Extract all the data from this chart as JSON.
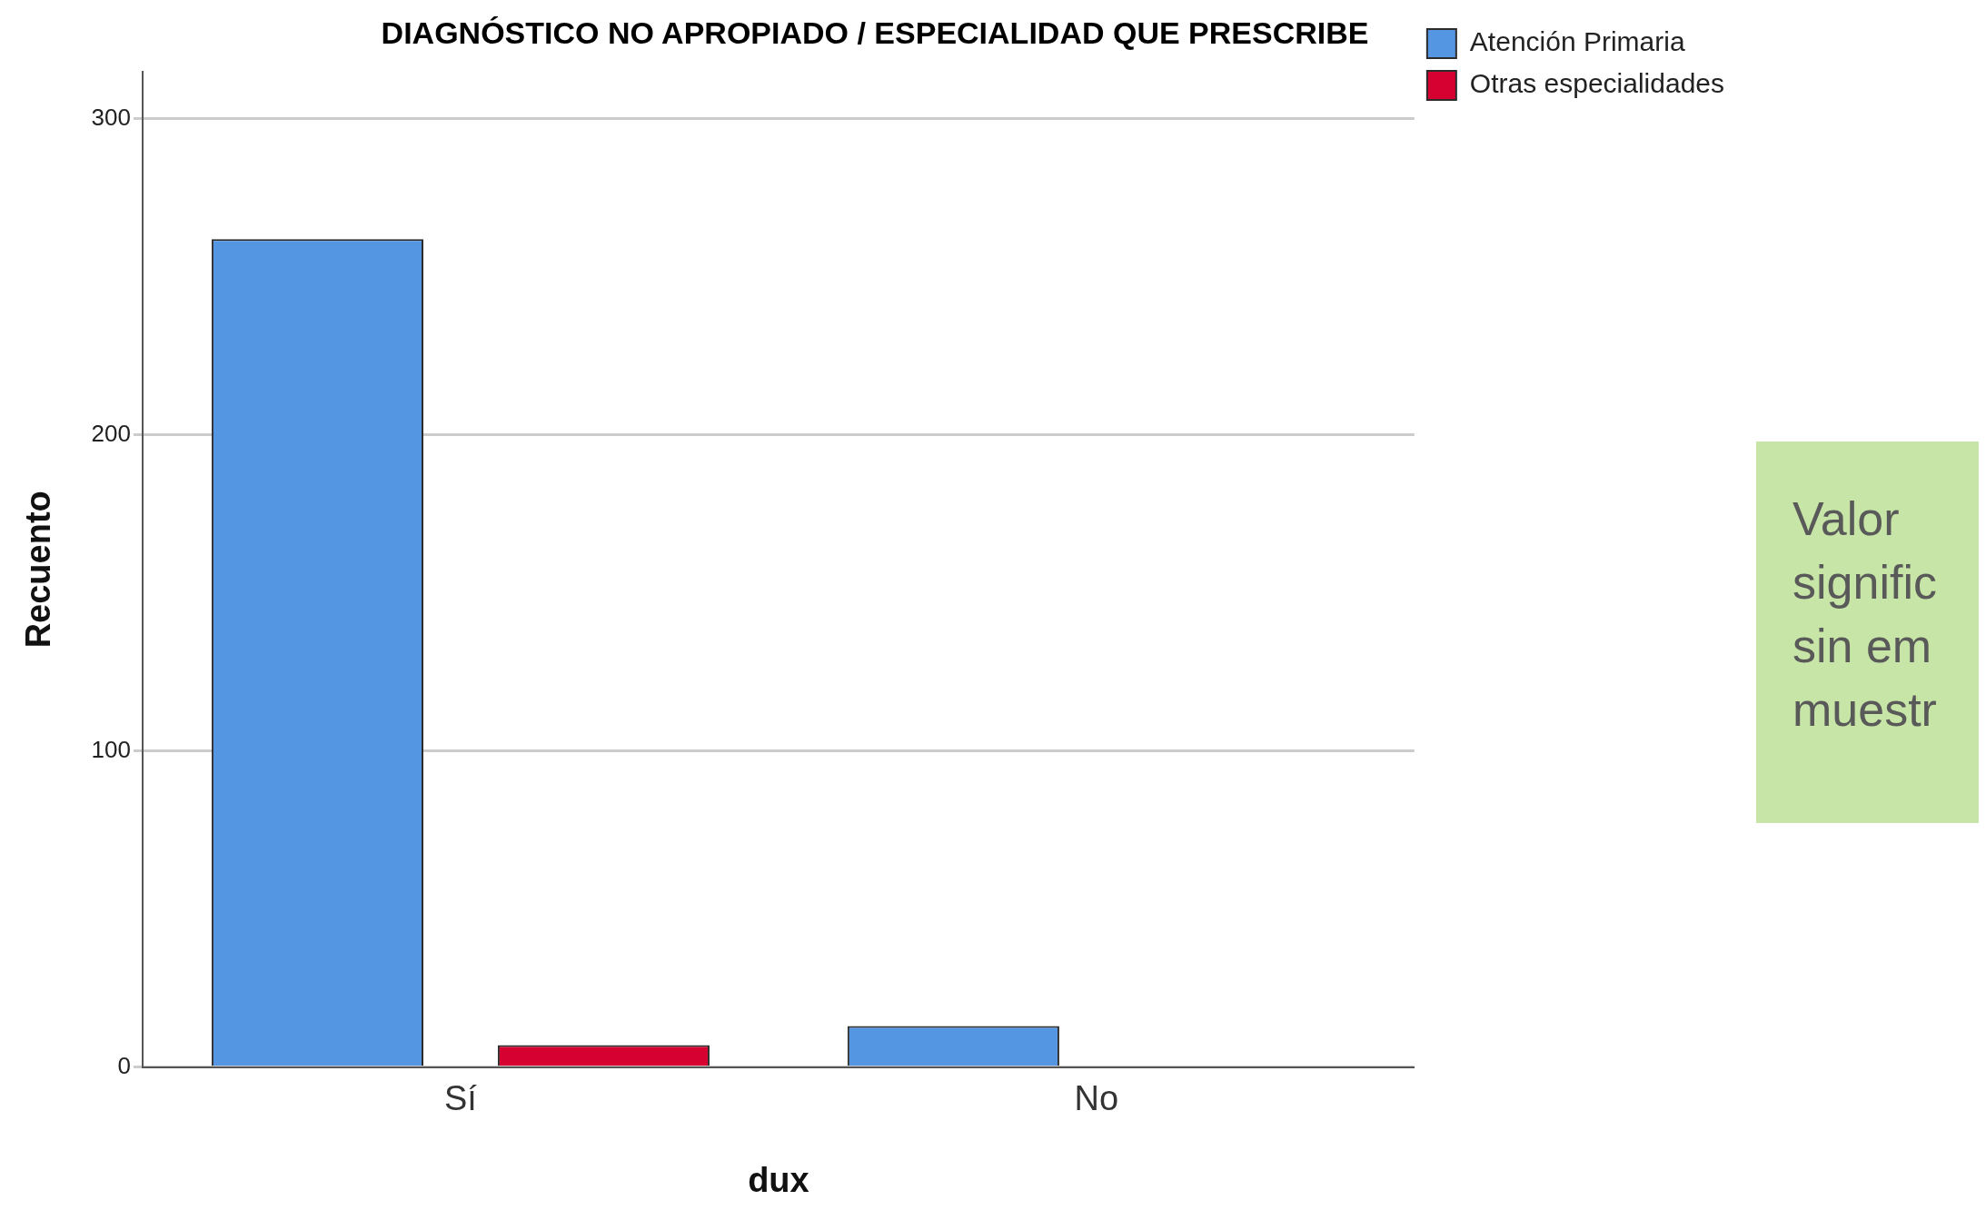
{
  "chart_data": {
    "type": "bar",
    "title": "DIAGNÓSTICO NO APROPIADO / ESPECIALIDAD QUE PRESCRIBE",
    "xlabel": "dux",
    "ylabel": "Recuento",
    "categories": [
      "Sí",
      "No"
    ],
    "series": [
      {
        "name": "Atención Primaria",
        "color": "#5596e3",
        "values": [
          262,
          13
        ]
      },
      {
        "name": "Otras especialidades",
        "color": "#d60031",
        "values": [
          7,
          0
        ]
      }
    ],
    "ylim": [
      0,
      315
    ],
    "yticks": [
      0,
      100,
      200,
      300
    ],
    "grid": "y",
    "legend": "top right",
    "annotations": [
      "Valor",
      "signific",
      "sin em",
      "muestr"
    ]
  }
}
